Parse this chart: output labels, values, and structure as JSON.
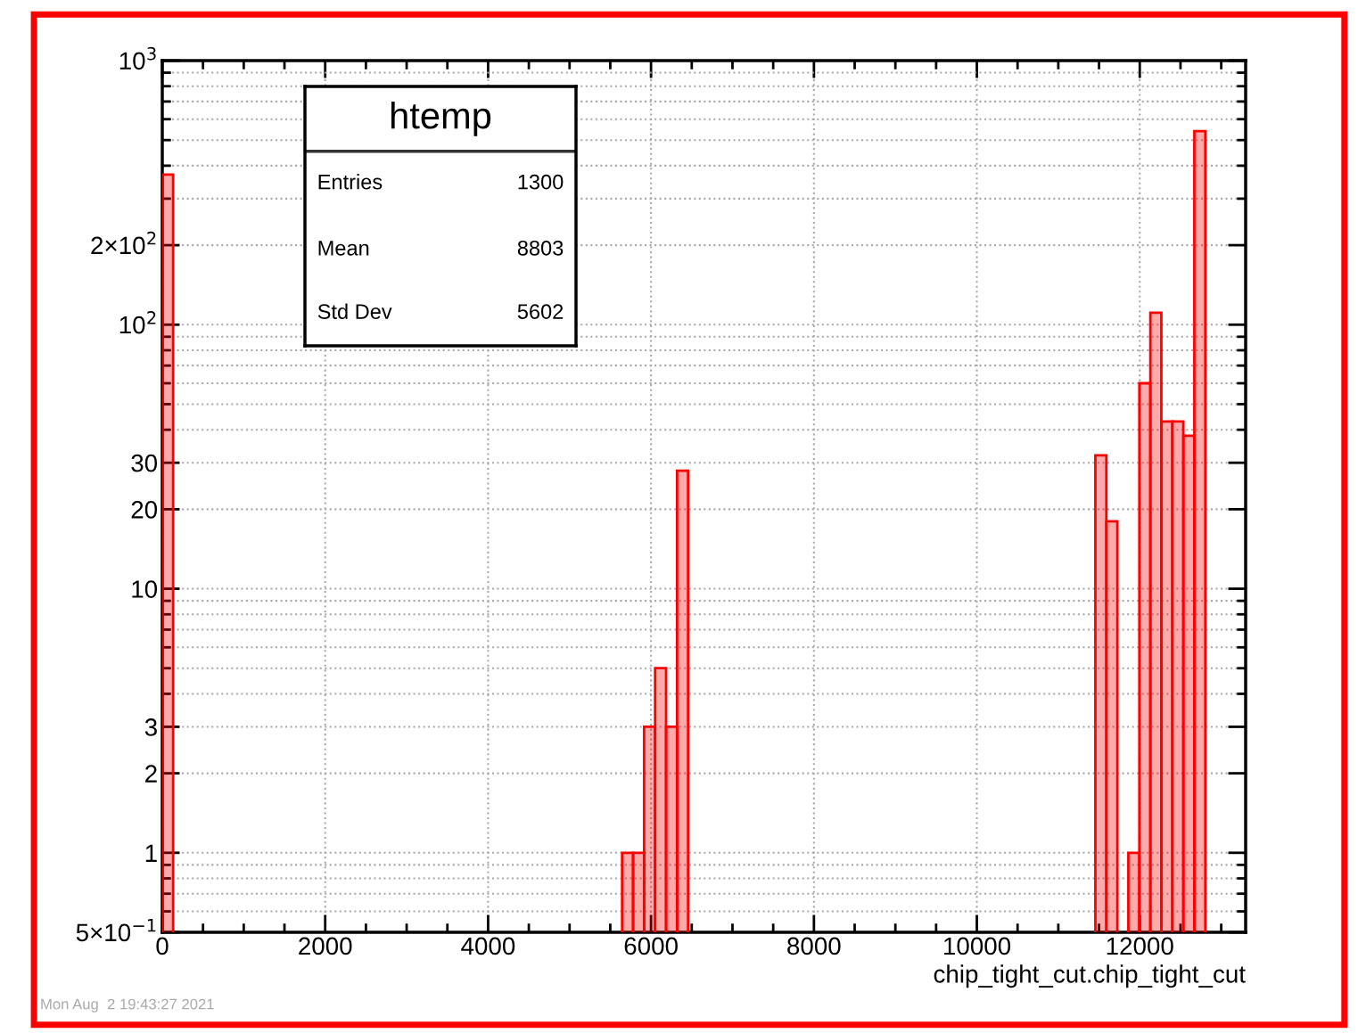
{
  "chart_data": {
    "type": "histogram",
    "title": "htemp",
    "xlabel": "chip_tight_cut.chip_tight_cut",
    "bins": [
      0,
      133,
      5645,
      5780,
      5915,
      6050,
      6185,
      6320,
      6455,
      11455,
      11590,
      11725,
      11860,
      11995,
      12130,
      12265,
      12400,
      12535,
      12670,
      12805
    ],
    "values": [
      370,
      null,
      1,
      1,
      3,
      5,
      3,
      28,
      null,
      32,
      18,
      null,
      1,
      60,
      111,
      43,
      43,
      38,
      541
    ],
    "color": "#ff0000",
    "log": "y",
    "grid": true,
    "xlim": [
      0,
      13300
    ],
    "xticks": [
      0,
      2000,
      4000,
      6000,
      8000,
      10000,
      12000
    ],
    "ylim": [
      0.5,
      1000
    ],
    "yticks": [
      {
        "value": 0.5,
        "label": "5×10$^{−1}$"
      },
      1,
      2,
      3,
      10,
      20,
      30,
      {
        "value": 100,
        "label": "10$^{2}$"
      },
      {
        "value": 200,
        "label": "2×10$^{2}$"
      },
      {
        "value": 1000,
        "label": "10$^{3}$"
      }
    ],
    "annotations": [
      "Entries",
      "1300",
      "Mean",
      "8803",
      "Std Dev",
      "5602",
      "Mon Aug  2 19:43:27 2021"
    ]
  }
}
